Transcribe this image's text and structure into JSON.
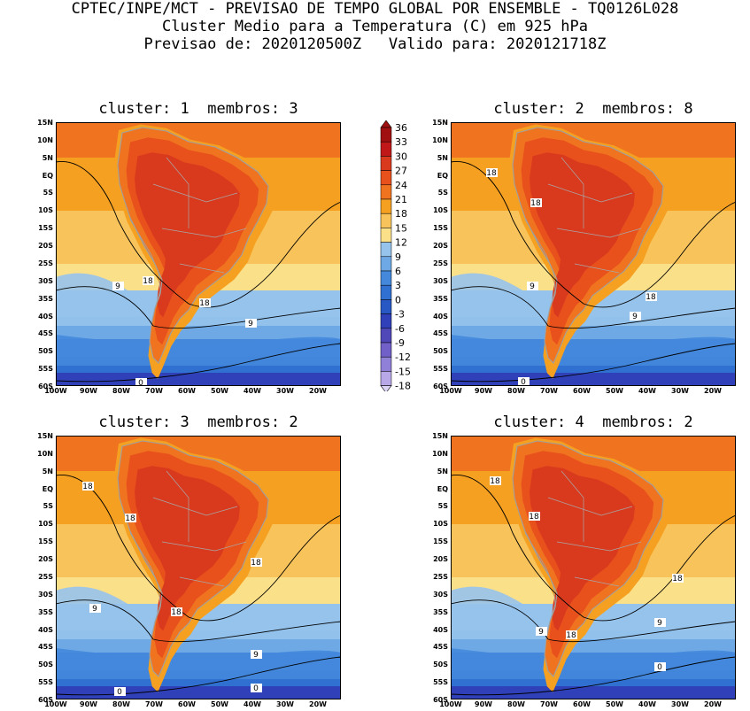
{
  "header": {
    "line1": "CPTEC/INPE/MCT - PREVISAO DE TEMPO GLOBAL POR ENSEMBLE - TQ0126L028",
    "line2": "Cluster Medio para a Temperatura (C) em 925 hPa",
    "line3": "Previsao de: 2020120500Z   Valido para: 2020121718Z"
  },
  "panels": [
    {
      "title": "cluster: 1  membros: 3",
      "contour_labels": [
        "18",
        "18",
        "9",
        "9",
        "0"
      ]
    },
    {
      "title": "cluster: 2  membros: 8",
      "contour_labels": [
        "18",
        "18",
        "18",
        "9",
        "9",
        "0"
      ]
    },
    {
      "title": "cluster: 3  membros: 2",
      "contour_labels": [
        "18",
        "18",
        "18",
        "18",
        "9",
        "9",
        "0",
        "0"
      ]
    },
    {
      "title": "cluster: 4  membros: 2",
      "contour_labels": [
        "18",
        "18",
        "18",
        "18",
        "9",
        "9",
        "0"
      ]
    }
  ],
  "lat_labels": [
    "15N",
    "10N",
    "5N",
    "EQ",
    "5S",
    "10S",
    "15S",
    "20S",
    "25S",
    "30S",
    "35S",
    "40S",
    "45S",
    "50S",
    "55S",
    "60S"
  ],
  "lon_labels": [
    "100W",
    "90W",
    "80W",
    "70W",
    "60W",
    "50W",
    "40W",
    "30W",
    "20W"
  ],
  "colorbar": {
    "labels": [
      "36",
      "33",
      "30",
      "27",
      "24",
      "21",
      "18",
      "15",
      "12",
      "9",
      "6",
      "3",
      "0",
      "-3",
      "-6",
      "-9",
      "-12",
      "-15",
      "-18"
    ],
    "colors": [
      "#a01010",
      "#c01818",
      "#d93a1e",
      "#e8501c",
      "#f07420",
      "#f5a020",
      "#f7c35a",
      "#fbe08a",
      "#96c3ec",
      "#6ea9e6",
      "#4488dc",
      "#3070d0",
      "#2858c4",
      "#3040b8",
      "#5048b8",
      "#7060c8",
      "#9080d8",
      "#b8a8e8"
    ]
  }
}
